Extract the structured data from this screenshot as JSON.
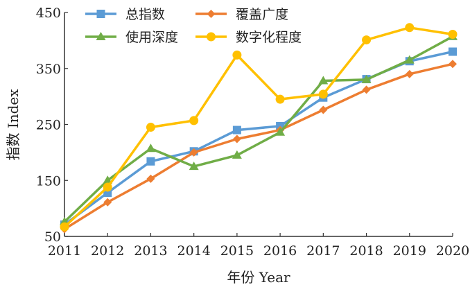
{
  "chart_data": {
    "type": "line",
    "title": "",
    "xlabel": "年份 Year",
    "ylabel": "指数 Index",
    "x": [
      "2011",
      "2012",
      "2013",
      "2014",
      "2015",
      "2016",
      "2017",
      "2018",
      "2019",
      "2020"
    ],
    "ylim": [
      50,
      450
    ],
    "yticks": [
      50,
      150,
      250,
      350,
      450
    ],
    "grid": false,
    "legend_position": "top-left",
    "series": [
      {
        "name": "总指数",
        "color": "#5b9bd5",
        "marker": "square",
        "values": [
          71,
          128,
          184,
          202,
          240,
          247,
          298,
          331,
          363,
          380
        ]
      },
      {
        "name": "覆盖广度",
        "color": "#ed7d31",
        "marker": "diamond",
        "values": [
          63,
          111,
          153,
          200,
          224,
          240,
          276,
          312,
          340,
          358
        ]
      },
      {
        "name": "使用深度",
        "color": "#70ad47",
        "marker": "triangle",
        "values": [
          76,
          150,
          207,
          175,
          195,
          236,
          328,
          330,
          365,
          407
        ]
      },
      {
        "name": "数字化程度",
        "color": "#ffc000",
        "marker": "circle",
        "values": [
          67,
          138,
          245,
          257,
          374,
          295,
          304,
          401,
          423,
          411
        ]
      }
    ]
  }
}
